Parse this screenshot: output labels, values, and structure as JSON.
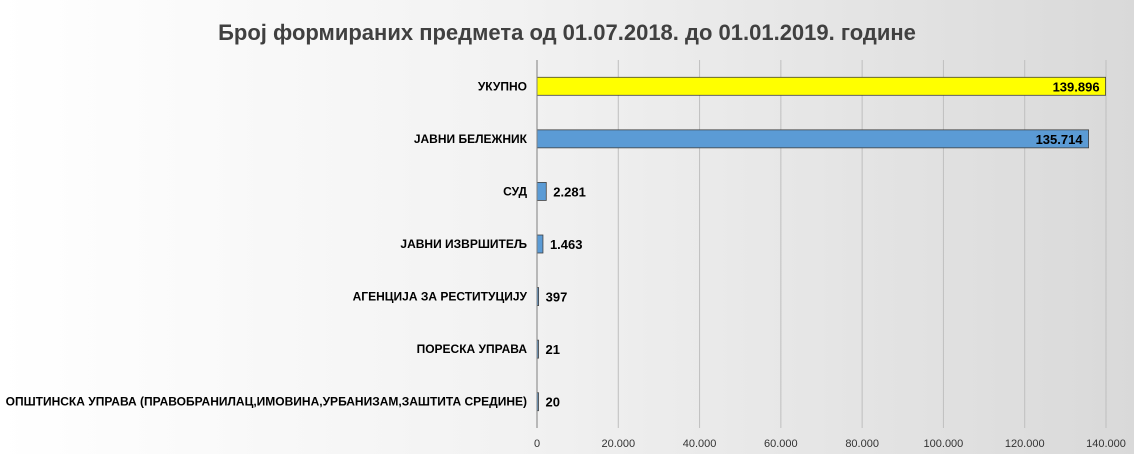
{
  "chart_data": {
    "type": "bar",
    "orientation": "horizontal",
    "title": "Број формираних предмета од  01.07.2018. до 01.01.2019. године",
    "xlabel": "",
    "ylabel": "",
    "xlim": [
      0,
      140000
    ],
    "grid": true,
    "legend": "none",
    "x_ticks": [
      "0",
      "20.000",
      "40.000",
      "60.000",
      "80.000",
      "100.000",
      "120.000",
      "140.000"
    ],
    "categories": [
      "УКУПНО",
      "ЈАВНИ БЕЛЕЖНИК",
      "СУД",
      "ЈАВНИ ИЗВРШИТЕЉ",
      "АГЕНЦИЈА ЗА РЕСТИТУЦИЈУ",
      "ПОРЕСКА  УПРАВА",
      "ОПШТИНСКА УПРАВА (ПРАВОБРАНИЛАЦ,ИМОВИНА,УРБАНИЗАМ,ЗАШТИТА  СРЕДИНЕ)"
    ],
    "values": [
      139896,
      135714,
      2281,
      1463,
      397,
      21,
      20
    ],
    "value_labels": [
      "139.896",
      "135.714",
      "2.281",
      "1.463",
      "397",
      "21",
      "20"
    ],
    "colors": [
      "#ffff00",
      "#5b9bd5",
      "#5b9bd5",
      "#5b9bd5",
      "#5b9bd5",
      "#5b9bd5",
      "#5b9bd5"
    ],
    "value_label_inside": [
      true,
      true,
      false,
      false,
      false,
      false,
      false
    ]
  }
}
